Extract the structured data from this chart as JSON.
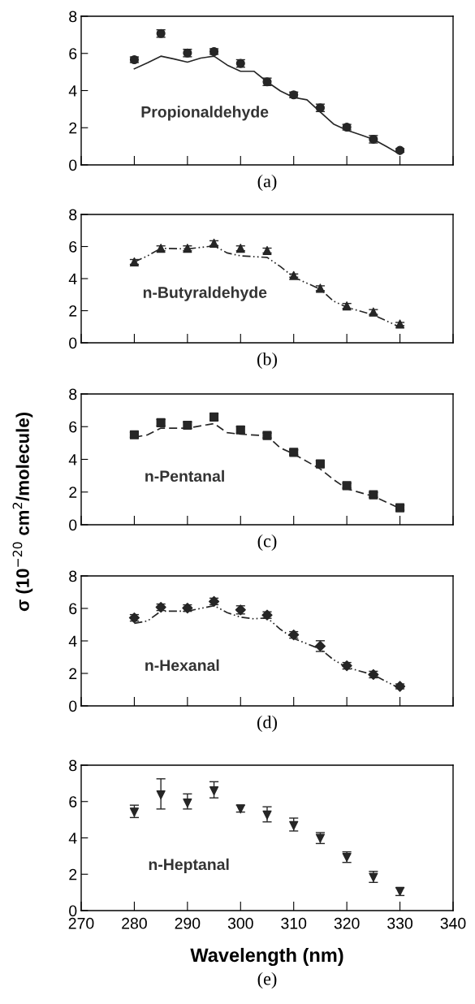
{
  "chart_data": [
    {
      "type": "scatter",
      "xlim": [
        270,
        340
      ],
      "xticks": [
        270,
        280,
        290,
        300,
        310,
        320,
        330,
        340
      ],
      "ylim": [
        0,
        8
      ],
      "yticks": [
        0,
        2,
        4,
        6,
        8
      ],
      "tick_labels": "y",
      "annotations": [
        "Propionaldehyde",
        "(a)"
      ],
      "series": [
        {
          "type": "scatter",
          "color": "#262626",
          "marker": "circle",
          "x": [
            280,
            285,
            290,
            295,
            300,
            305,
            310,
            315,
            320,
            325,
            330
          ],
          "values": [
            5.66,
            7.07,
            6.02,
            6.1,
            5.46,
            4.47,
            3.77,
            3.07,
            2.03,
            1.38,
            0.78
          ],
          "errors": [
            0.15,
            0.2,
            0.2,
            0.15,
            0.2,
            0.2,
            0.15,
            0.2,
            0.15,
            0.2,
            0.1
          ]
        },
        {
          "type": "line",
          "color": "#262626",
          "line_style": "solid",
          "x": [
            280,
            282.5,
            285,
            287.5,
            290,
            292.5,
            295,
            297.5,
            300,
            302.5,
            305,
            307.5,
            310,
            312.5,
            315,
            317.5,
            320,
            322.5,
            325,
            327.5,
            330
          ],
          "values": [
            5.17,
            5.5,
            5.85,
            5.7,
            5.53,
            5.75,
            5.85,
            5.37,
            5.04,
            5.04,
            4.47,
            3.98,
            3.63,
            3.5,
            2.85,
            2.2,
            1.87,
            1.63,
            1.38,
            0.98,
            0.57
          ]
        }
      ]
    },
    {
      "type": "scatter",
      "xlim": [
        270,
        340
      ],
      "xticks": [
        270,
        280,
        290,
        300,
        310,
        320,
        330,
        340
      ],
      "ylim": [
        0,
        8
      ],
      "yticks": [
        0,
        2,
        4,
        6,
        8
      ],
      "tick_labels": "y",
      "annotations": [
        "n-Butyraldehyde",
        "(b)"
      ],
      "series": [
        {
          "type": "scatter",
          "color": "#262626",
          "marker": "triangle",
          "x": [
            280,
            285,
            290,
            295,
            300,
            305,
            310,
            315,
            320,
            325,
            330
          ],
          "values": [
            5.04,
            5.89,
            5.89,
            6.21,
            5.89,
            5.75,
            4.19,
            3.4,
            2.3,
            1.92,
            1.17
          ],
          "errors": [
            0.15,
            0.15,
            0.15,
            0.15,
            0.15,
            0.15,
            0.1,
            0.15,
            0.15,
            0.15,
            0.1
          ]
        },
        {
          "type": "line",
          "color": "#262626",
          "line_style": "dashdot",
          "x": [
            280,
            282.5,
            285,
            290,
            295,
            297.5,
            300,
            305,
            307.5,
            310,
            315,
            317.5,
            320,
            325,
            330
          ],
          "values": [
            5.04,
            5.42,
            5.89,
            5.85,
            6.04,
            5.6,
            5.42,
            5.32,
            4.75,
            4.09,
            3.34,
            2.6,
            2.21,
            1.74,
            0.98
          ]
        }
      ]
    },
    {
      "type": "scatter",
      "xlim": [
        270,
        340
      ],
      "xticks": [
        270,
        280,
        290,
        300,
        310,
        320,
        330,
        340
      ],
      "ylim": [
        0,
        8
      ],
      "yticks": [
        0,
        2,
        4,
        6,
        8
      ],
      "tick_labels": "y",
      "ylabel": "σ (10$^{−20}$ cm$^{2}$/molecule)",
      "annotations": [
        "n-Pentanal",
        "(c)"
      ],
      "series": [
        {
          "type": "scatter",
          "color": "#262626",
          "marker": "square",
          "x": [
            280,
            285,
            290,
            295,
            300,
            305,
            310,
            315,
            320,
            325,
            330
          ],
          "values": [
            5.5,
            6.24,
            6.09,
            6.59,
            5.8,
            5.46,
            4.43,
            3.72,
            2.39,
            1.83,
            1.04
          ],
          "errors": [
            0.15,
            0.2,
            0.2,
            0.2,
            0.2,
            0.15,
            0.15,
            0.2,
            0.15,
            0.15,
            0.15
          ]
        },
        {
          "type": "line",
          "color": "#262626",
          "line_style": "dashed",
          "x": [
            280,
            282.5,
            285,
            290,
            295,
            297.5,
            300,
            305,
            307.5,
            310,
            315,
            317.5,
            320,
            325,
            330
          ],
          "values": [
            5.35,
            5.5,
            5.91,
            5.91,
            6.19,
            5.63,
            5.54,
            5.44,
            4.7,
            4.33,
            3.41,
            2.76,
            2.2,
            1.74,
            1.0
          ]
        }
      ]
    },
    {
      "type": "scatter",
      "xlim": [
        270,
        340
      ],
      "xticks": [
        270,
        280,
        290,
        300,
        310,
        320,
        330,
        340
      ],
      "ylim": [
        0,
        8
      ],
      "yticks": [
        0,
        2,
        4,
        6,
        8
      ],
      "tick_labels": "y",
      "annotations": [
        "n-Hexanal",
        "(d)"
      ],
      "series": [
        {
          "type": "scatter",
          "color": "#262626",
          "marker": "diamond",
          "x": [
            280,
            285,
            290,
            295,
            300,
            305,
            310,
            315,
            320,
            325,
            330
          ],
          "values": [
            5.42,
            6.07,
            6.02,
            6.43,
            5.91,
            5.59,
            4.37,
            3.68,
            2.47,
            1.93,
            1.2
          ],
          "errors": [
            0.2,
            0.2,
            0.2,
            0.2,
            0.25,
            0.2,
            0.2,
            0.33,
            0.2,
            0.2,
            0.15
          ]
        },
        {
          "type": "line",
          "color": "#262626",
          "line_style": "dashdot",
          "x": [
            280,
            282.5,
            285,
            290,
            295,
            297.5,
            300,
            302.5,
            305,
            307.5,
            310,
            315,
            317.5,
            320,
            325,
            330
          ],
          "values": [
            5.08,
            5.23,
            5.83,
            5.83,
            6.17,
            5.74,
            5.46,
            5.36,
            5.42,
            4.71,
            4.15,
            3.5,
            2.84,
            2.37,
            1.91,
            1.07
          ]
        }
      ]
    },
    {
      "type": "scatter",
      "xlim": [
        270,
        340
      ],
      "xticks": [
        270,
        280,
        290,
        300,
        310,
        320,
        330,
        340
      ],
      "ylim": [
        0,
        8
      ],
      "yticks": [
        0,
        2,
        4,
        6,
        8
      ],
      "xlabel": "Wavelength (nm)",
      "annotations": [
        "n-Heptanal",
        "(e)"
      ],
      "series": [
        {
          "type": "scatter",
          "color": "#262626",
          "marker": "triangle_down",
          "x": [
            280,
            285,
            290,
            295,
            300,
            305,
            310,
            315,
            320,
            325,
            330
          ],
          "values": [
            5.42,
            6.37,
            5.92,
            6.59,
            5.59,
            5.26,
            4.68,
            3.98,
            2.93,
            1.83,
            1.06
          ],
          "errors": [
            [
              5.12,
              5.8
            ],
            [
              5.59,
              7.25
            ],
            [
              5.59,
              6.42
            ],
            [
              6.2,
              7.09
            ],
            [
              5.42,
              5.8
            ],
            [
              4.88,
              5.71
            ],
            [
              4.38,
              5.09
            ],
            [
              3.69,
              4.29
            ],
            [
              2.65,
              3.23
            ],
            [
              1.55,
              2.16
            ],
            [
              0.83,
              1.26
            ]
          ]
        }
      ]
    }
  ]
}
